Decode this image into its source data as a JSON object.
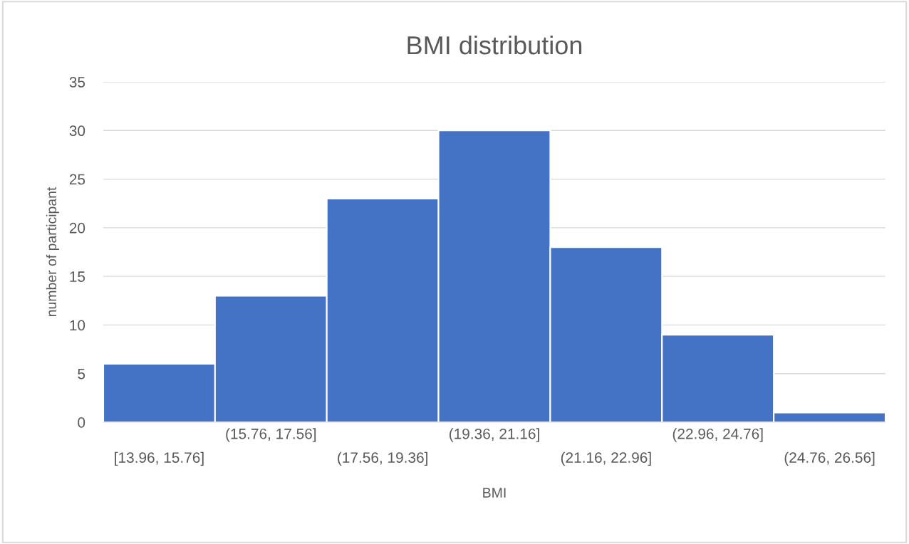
{
  "chart_data": {
    "type": "bar",
    "title": "BMI distribution",
    "xlabel": "BMI",
    "ylabel": "number of participant",
    "categories": [
      "[13.96, 15.76]",
      "(15.76, 17.56]",
      "(17.56, 19.36]",
      "(19.36, 21.16]",
      "(21.16, 22.96]",
      "(22.96, 24.76]",
      "(24.76, 26.56]"
    ],
    "values": [
      6,
      13,
      23,
      30,
      18,
      9,
      1
    ],
    "color": "#4472c4",
    "ylim": [
      0,
      35
    ],
    "yticks": [
      0,
      5,
      10,
      15,
      20,
      25,
      30,
      35
    ],
    "grid": "y"
  }
}
